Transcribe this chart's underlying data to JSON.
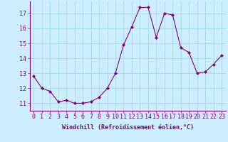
{
  "x": [
    0,
    1,
    2,
    3,
    4,
    5,
    6,
    7,
    8,
    9,
    10,
    11,
    12,
    13,
    14,
    15,
    16,
    17,
    18,
    19,
    20,
    21,
    22,
    23
  ],
  "y": [
    12.8,
    12.0,
    11.8,
    11.1,
    11.2,
    11.0,
    11.0,
    11.1,
    11.4,
    12.0,
    13.0,
    14.9,
    16.1,
    17.4,
    17.4,
    15.4,
    17.0,
    16.9,
    14.7,
    14.4,
    13.0,
    13.1,
    13.6,
    14.2
  ],
  "line_color": "#800080",
  "marker": "D",
  "marker_size": 2.0,
  "bg_color": "#cceeff",
  "grid_color": "#aadddd",
  "xlabel": "Windchill (Refroidissement éolien,°C)",
  "xlabel_fontsize": 6.0,
  "tick_fontsize": 6.0,
  "ylim": [
    10.5,
    17.8
  ],
  "yticks": [
    11,
    12,
    13,
    14,
    15,
    16,
    17
  ],
  "xticks": [
    0,
    1,
    2,
    3,
    4,
    5,
    6,
    7,
    8,
    9,
    10,
    11,
    12,
    13,
    14,
    15,
    16,
    17,
    18,
    19,
    20,
    21,
    22,
    23
  ],
  "xlim": [
    -0.5,
    23.5
  ]
}
